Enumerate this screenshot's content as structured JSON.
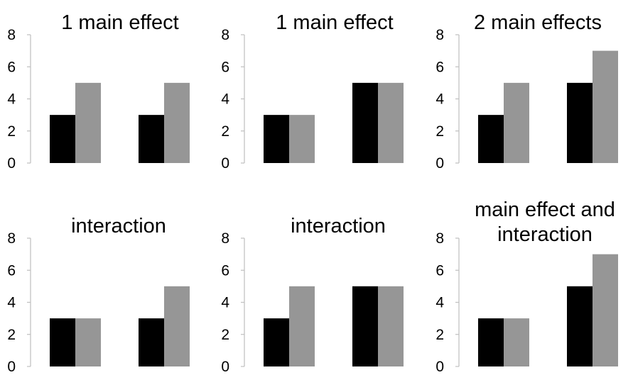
{
  "colors": {
    "series_a": "#000000",
    "series_b": "#969696",
    "axis": "#bfbfbf"
  },
  "chart_data": [
    {
      "type": "bar",
      "title": "1 main effect",
      "categories": [
        "",
        ""
      ],
      "series": [
        {
          "values": [
            3,
            3
          ]
        },
        {
          "values": [
            5,
            5
          ]
        }
      ],
      "ylim": [
        0,
        8
      ],
      "yticks": [
        0,
        2,
        4,
        6,
        8
      ],
      "grid": false
    },
    {
      "type": "bar",
      "title": "1 main effect",
      "categories": [
        "",
        ""
      ],
      "series": [
        {
          "values": [
            3,
            5
          ]
        },
        {
          "values": [
            3,
            5
          ]
        }
      ],
      "ylim": [
        0,
        8
      ],
      "yticks": [
        0,
        2,
        4,
        6,
        8
      ],
      "grid": false
    },
    {
      "type": "bar",
      "title": "2 main effects",
      "categories": [
        "",
        ""
      ],
      "series": [
        {
          "values": [
            3,
            5
          ]
        },
        {
          "values": [
            5,
            7
          ]
        }
      ],
      "ylim": [
        0,
        8
      ],
      "yticks": [
        0,
        2,
        4,
        6,
        8
      ],
      "grid": false
    },
    {
      "type": "bar",
      "title": "interaction",
      "categories": [
        "",
        ""
      ],
      "series": [
        {
          "values": [
            3,
            3
          ]
        },
        {
          "values": [
            3,
            5
          ]
        }
      ],
      "ylim": [
        0,
        8
      ],
      "yticks": [
        0,
        2,
        4,
        6,
        8
      ],
      "grid": false
    },
    {
      "type": "bar",
      "title": "interaction",
      "categories": [
        "",
        ""
      ],
      "series": [
        {
          "values": [
            3,
            5
          ]
        },
        {
          "values": [
            5,
            5
          ]
        }
      ],
      "ylim": [
        0,
        8
      ],
      "yticks": [
        0,
        2,
        4,
        6,
        8
      ],
      "grid": false
    },
    {
      "type": "bar",
      "title": [
        "main effect and",
        "interaction"
      ],
      "categories": [
        "",
        ""
      ],
      "series": [
        {
          "values": [
            3,
            5
          ]
        },
        {
          "values": [
            3,
            7
          ]
        }
      ],
      "ylim": [
        0,
        8
      ],
      "yticks": [
        0,
        2,
        4,
        6,
        8
      ],
      "grid": false
    }
  ]
}
